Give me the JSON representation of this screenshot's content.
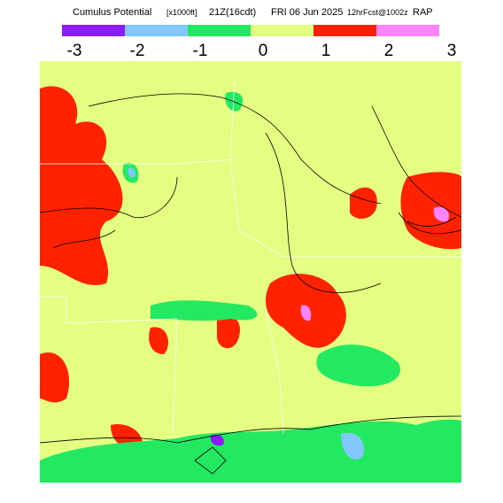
{
  "header": {
    "title": "Cumulus Potential",
    "units": "[x1000ft]",
    "time": "21Z(16cdt)",
    "date": "FRI 06 Jun 2025",
    "forecast": "12hrFcst@1002z",
    "model": "RAP"
  },
  "legend": {
    "colors": [
      "#8c1cff",
      "#82c8ff",
      "#22e862",
      "#e4fe82",
      "#ff2200",
      "#ff84ff"
    ],
    "ticks": [
      -3,
      -2,
      -1,
      0,
      1,
      2,
      3
    ]
  }
}
